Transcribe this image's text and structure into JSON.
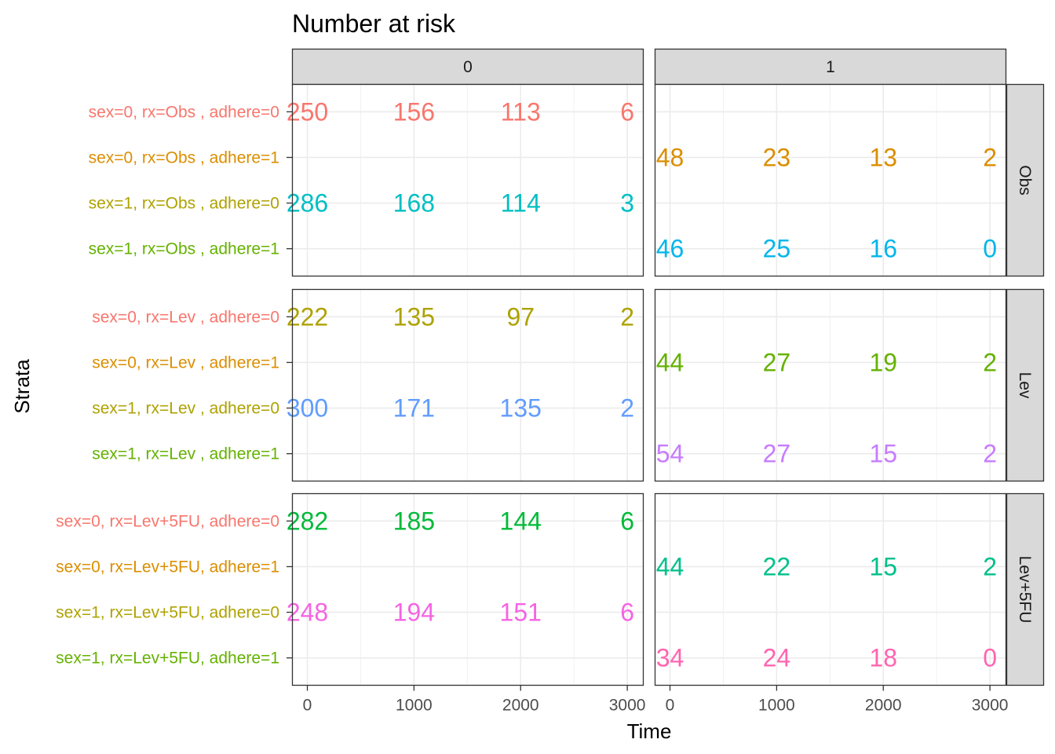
{
  "chart_data": {
    "type": "table",
    "title": "Number at risk",
    "xlabel": "Time",
    "ylabel": "Strata",
    "x_ticks": [
      0,
      1000,
      2000,
      3000
    ],
    "xlim": [
      -140,
      3150
    ],
    "facet_columns": [
      "0",
      "1"
    ],
    "facet_rows": [
      "Obs",
      "Lev",
      "Lev+5FU"
    ],
    "grid": true,
    "times": [
      0,
      1000,
      2000,
      3000
    ],
    "panels": [
      {
        "facet_row": "Obs",
        "strata": [
          {
            "label": "sex=0, rx=Obs , adhere=0",
            "color": "#F8766D"
          },
          {
            "label": "sex=0, rx=Obs , adhere=1",
            "color": "#DB8E00"
          },
          {
            "label": "sex=1, rx=Obs , adhere=0",
            "color": "#AEA200"
          },
          {
            "label": "sex=1, rx=Obs , adhere=1",
            "color": "#64B200"
          }
        ],
        "cells": [
          {
            "facet_col": "0",
            "stratum": 0,
            "color": "#F8766D",
            "values": [
              250,
              156,
              113,
              6
            ]
          },
          {
            "facet_col": "0",
            "stratum": 2,
            "color": "#00BFC4",
            "values": [
              286,
              168,
              114,
              3
            ]
          },
          {
            "facet_col": "1",
            "stratum": 1,
            "color": "#DB8E00",
            "values": [
              48,
              23,
              13,
              2
            ]
          },
          {
            "facet_col": "1",
            "stratum": 3,
            "color": "#00B6EB",
            "values": [
              46,
              25,
              16,
              0
            ]
          }
        ]
      },
      {
        "facet_row": "Lev",
        "strata": [
          {
            "label": "sex=0, rx=Lev , adhere=0",
            "color": "#F8766D"
          },
          {
            "label": "sex=0, rx=Lev , adhere=1",
            "color": "#DB8E00"
          },
          {
            "label": "sex=1, rx=Lev , adhere=0",
            "color": "#AEA200"
          },
          {
            "label": "sex=1, rx=Lev , adhere=1",
            "color": "#64B200"
          }
        ],
        "cells": [
          {
            "facet_col": "0",
            "stratum": 0,
            "color": "#AEA200",
            "values": [
              222,
              135,
              97,
              2
            ]
          },
          {
            "facet_col": "0",
            "stratum": 2,
            "color": "#619CFF",
            "values": [
              300,
              171,
              135,
              2
            ]
          },
          {
            "facet_col": "1",
            "stratum": 1,
            "color": "#64B200",
            "values": [
              44,
              27,
              19,
              2
            ]
          },
          {
            "facet_col": "1",
            "stratum": 3,
            "color": "#C77CFF",
            "values": [
              54,
              27,
              15,
              2
            ]
          }
        ]
      },
      {
        "facet_row": "Lev+5FU",
        "strata": [
          {
            "label": "sex=0, rx=Lev+5FU, adhere=0",
            "color": "#F8766D"
          },
          {
            "label": "sex=0, rx=Lev+5FU, adhere=1",
            "color": "#DB8E00"
          },
          {
            "label": "sex=1, rx=Lev+5FU, adhere=0",
            "color": "#AEA200"
          },
          {
            "label": "sex=1, rx=Lev+5FU, adhere=1",
            "color": "#64B200"
          }
        ],
        "cells": [
          {
            "facet_col": "0",
            "stratum": 0,
            "color": "#00BA38",
            "values": [
              282,
              185,
              144,
              6
            ]
          },
          {
            "facet_col": "0",
            "stratum": 2,
            "color": "#F564E3",
            "values": [
              248,
              194,
              151,
              6
            ]
          },
          {
            "facet_col": "1",
            "stratum": 1,
            "color": "#00C08B",
            "values": [
              44,
              22,
              15,
              2
            ]
          },
          {
            "facet_col": "1",
            "stratum": 3,
            "color": "#FF64B0",
            "values": [
              34,
              24,
              18,
              0
            ]
          }
        ]
      }
    ]
  }
}
